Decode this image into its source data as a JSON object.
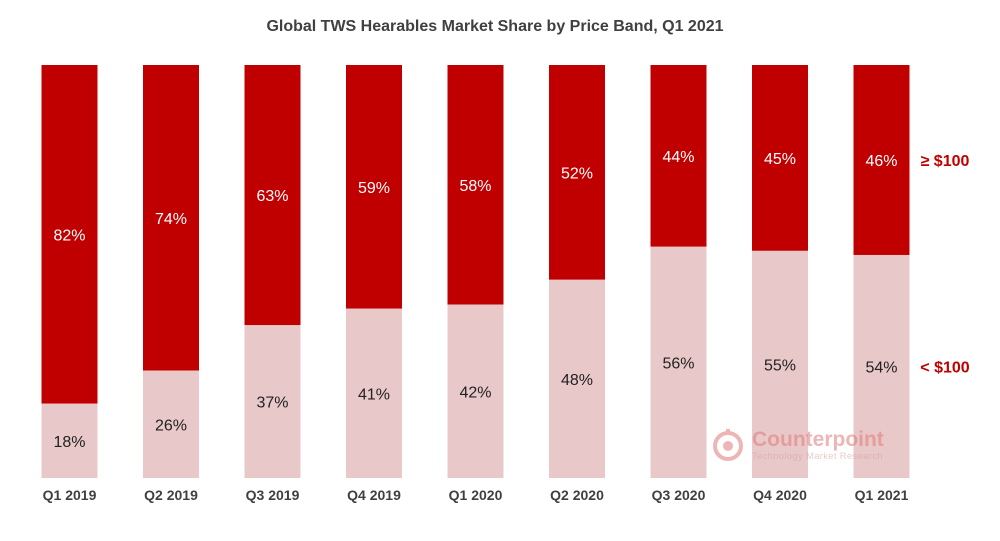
{
  "chart_data": {
    "type": "bar",
    "stacked": true,
    "normalized_percent": true,
    "title": "Global TWS Hearables Market Share by Price Band, Q1 2021",
    "categories": [
      "Q1 2019",
      "Q2 2019",
      "Q3 2019",
      "Q4 2019",
      "Q1 2020",
      "Q2 2020",
      "Q3 2020",
      "Q4 2020",
      "Q1 2021"
    ],
    "series": [
      {
        "name": "< $100",
        "values": [
          18,
          26,
          37,
          41,
          42,
          48,
          56,
          55,
          54
        ],
        "color": "#e8c8c8",
        "label_color": "#222222"
      },
      {
        "name": "≥ $100",
        "values": [
          82,
          74,
          63,
          59,
          58,
          52,
          44,
          45,
          46
        ],
        "color": "#c00000",
        "label_color": "#ffffff"
      }
    ],
    "data_labels": [
      [
        "18%",
        "26%",
        "37%",
        "41%",
        "42%",
        "48%",
        "56%",
        "55%",
        "54%"
      ],
      [
        "82%",
        "74%",
        "63%",
        "59%",
        "58%",
        "52%",
        "44%",
        "45%",
        "46%"
      ]
    ],
    "legend_position": "right",
    "legend_color": "#c00000",
    "grid": false
  },
  "watermark": {
    "name": "Counterpoint",
    "tagline": "Technology Market Research"
  }
}
